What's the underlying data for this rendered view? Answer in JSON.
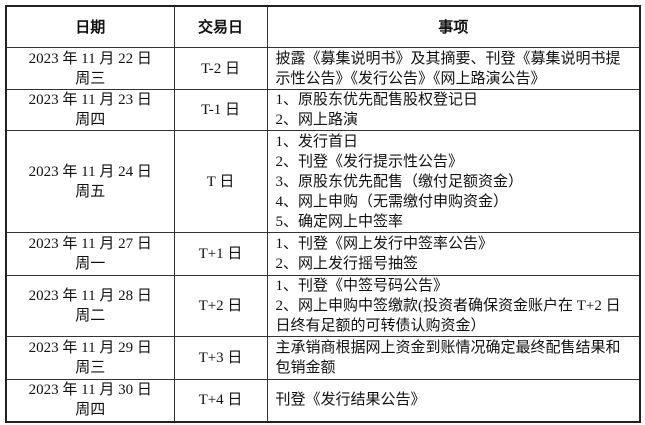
{
  "headers": [
    "日期",
    "交易日",
    "事项"
  ],
  "rows": [
    {
      "date": "2023 年 11 月 22 日",
      "weekday": "周三",
      "tday": "T-2 日",
      "items": [
        "披露《募集说明书》及其摘要、刊登《募集说明书提",
        "示性公告》《发行公告》《网上路演公告》"
      ]
    },
    {
      "date": "2023 年 11 月 23 日",
      "weekday": "周四",
      "tday": "T-1 日",
      "items": [
        "1、原股东优先配售股权登记日",
        "2、网上路演"
      ]
    },
    {
      "date": "2023 年 11 月 24 日",
      "weekday": "周五",
      "tday": "T 日",
      "items": [
        "1、发行首日",
        "2、刊登《发行提示性公告》",
        "3、原股东优先配售（缴付足额资金）",
        "4、网上申购（无需缴付申购资金）",
        "5、确定网上中签率"
      ]
    },
    {
      "date": "2023 年 11 月 27 日",
      "weekday": "周一",
      "tday": "T+1 日",
      "items": [
        "1、刊登《网上发行中签率公告》",
        "2、网上发行摇号抽签"
      ]
    },
    {
      "date": "2023 年 11 月 28 日",
      "weekday": "周二",
      "tday": "T+2 日",
      "items": [
        "1、刊登《中签号码公告》",
        "2、网上申购中签缴款(投资者确保资金账户在 T+2 日",
        "日终有足额的可转债认购资金）"
      ]
    },
    {
      "date": "2023 年 11 月 29 日",
      "weekday": "周三",
      "tday": "T+3 日",
      "items": [
        "主承销商根据网上资金到账情况确定最终配售结果和",
        "包销金额"
      ]
    },
    {
      "date": "2023 年 11 月 30 日",
      "weekday": "周四",
      "tday": "T+4 日",
      "items": [
        "刊登《发行结果公告》"
      ]
    }
  ]
}
